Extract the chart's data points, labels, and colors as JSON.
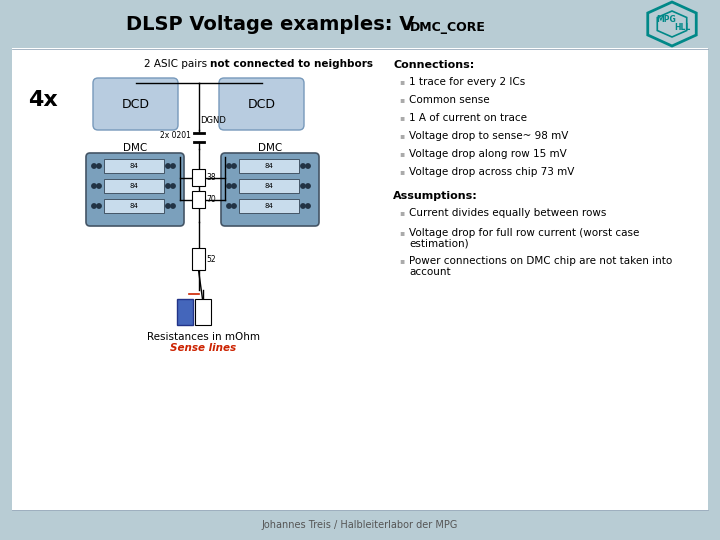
{
  "title_main": "DLSP Voltage examples: V",
  "title_sub": "DMC_CORE",
  "bg_color": "#b8ccd4",
  "panel_bg": "#ffffff",
  "footer_text": "Johannes Treis / Halbleiterlabor der MPG",
  "connections_title": "Connections:",
  "connections_bullets": [
    "1 trace for every 2 ICs",
    "Common sense",
    "1 A of current on trace",
    "Voltage drop to sense~ 98 mV",
    "Voltage drop along row 15 mV",
    "Voltage drop across chip 73 mV"
  ],
  "assumptions_title": "Assumptions:",
  "assumptions_bullets": [
    "Current divides equally between rows",
    "Voltage drop for full row current (worst case\nestimation)",
    "Power connections on DMC chip are not taken into\naccount"
  ],
  "diagram_label_4x": "4x",
  "diagram_label_asic": "2 ASIC pairs not connected to neighbors",
  "diagram_label_resistances": "Resistances in mOhm",
  "diagram_label_sense": "Sense lines",
  "dcd_color": "#b8cce0",
  "dmc_color": "#7ba0bc",
  "chip_color": "#c8dcec",
  "sense_line_color": "#cc2200",
  "logo_primary": "#008888",
  "bullet_color": "#aaaaaa"
}
